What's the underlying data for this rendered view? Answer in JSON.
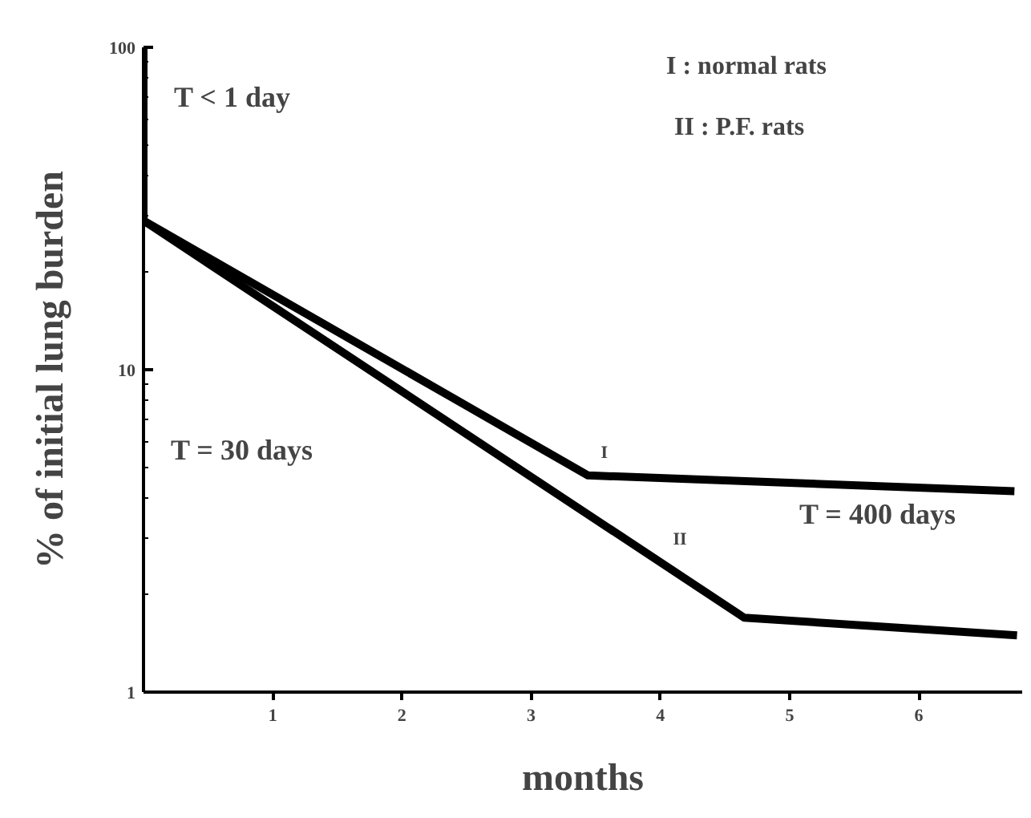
{
  "chart_data": {
    "type": "line",
    "xlabel": "months",
    "ylabel": "% of initial lung burden",
    "log": "y",
    "xlim": [
      0,
      6.8
    ],
    "ylim": [
      1,
      100
    ],
    "xticks": [
      1,
      2,
      3,
      4,
      5,
      6
    ],
    "yticks": [
      1,
      10,
      100
    ],
    "grid": false,
    "marker": "none",
    "line_style": "solid",
    "series": [
      {
        "name": "I",
        "color": "#000000",
        "x": [
          0,
          0,
          3.44,
          6.74
        ],
        "values": [
          100,
          29,
          4.7,
          4.2
        ]
      },
      {
        "name": "II",
        "color": "#000000",
        "x": [
          0,
          0,
          4.65,
          6.76
        ],
        "values": [
          100,
          29,
          1.7,
          1.5
        ]
      }
    ],
    "annotations": [
      "T < 1 day",
      "I : normal rats",
      "II : P.F. rats",
      "T = 30 days",
      "T = 400 days"
    ]
  }
}
